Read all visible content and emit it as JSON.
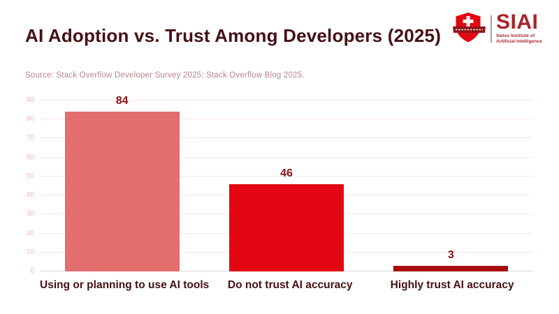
{
  "header": {
    "title": "AI Adoption vs. Trust Among Developers (2025)",
    "source": "Source: Stack Overflow Developer Survey 2025; Stack Overflow Blog 2025."
  },
  "logo": {
    "acronym": "SIAI",
    "name_line1": "Swiss Institute of",
    "name_line2": "Artificial Intelligence",
    "shield_icon": "swiss-shield-with-cross-and-ribbon",
    "brand_red": "#e30613",
    "brand_dark_red": "#a8232a"
  },
  "chart_data": {
    "type": "bar",
    "title": "AI Adoption vs. Trust Among Developers (2025)",
    "categories": [
      "Using or planning to use AI tools",
      "Do not trust AI accuracy",
      "Highly trust AI accuracy"
    ],
    "values": [
      84,
      46,
      3
    ],
    "bar_colors": [
      "#e26e6e",
      "#e30613",
      "#a80c10"
    ],
    "value_label_color": "#8b1014",
    "ylim": [
      0,
      90
    ],
    "ytick_step": 10,
    "yticks": [
      0,
      10,
      20,
      30,
      40,
      50,
      60,
      70,
      80,
      90
    ],
    "grid": true,
    "legend": false,
    "xlabel": "",
    "ylabel": ""
  }
}
